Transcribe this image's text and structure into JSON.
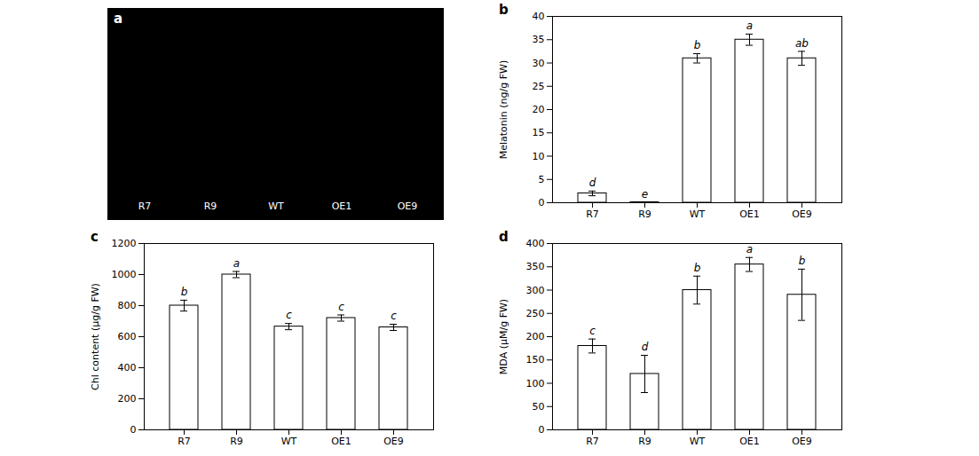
{
  "chart_data": [
    {
      "type": "photo",
      "title": "a",
      "categories": [
        "R7",
        "R9",
        "WT",
        "OE1",
        "OE9"
      ],
      "color": "black",
      "tick_labels": false
    },
    {
      "type": "bar",
      "title": "b",
      "categories": [
        "R7",
        "R9",
        "WT",
        "OE1",
        "OE9"
      ],
      "values": [
        2.0,
        0.1,
        31.0,
        35.0,
        31.0
      ],
      "errors": [
        0.5,
        0.05,
        1.0,
        1.2,
        1.5
      ],
      "annotations": [
        "d",
        "e",
        "b",
        "a",
        "ab"
      ],
      "ylabel": "Melatonin (ng/g FW)",
      "ylim": [
        0,
        40
      ],
      "yticks": [
        0,
        5,
        10,
        15,
        20,
        25,
        30,
        35,
        40
      ],
      "color": "white"
    },
    {
      "type": "bar",
      "title": "c",
      "categories": [
        "R7",
        "R9",
        "WT",
        "OE1",
        "OE9"
      ],
      "values": [
        800,
        1000,
        665,
        720,
        660
      ],
      "errors": [
        35,
        20,
        20,
        20,
        20
      ],
      "annotations": [
        "b",
        "a",
        "c",
        "c",
        "c"
      ],
      "ylabel": "Chl content (μg/g FW)",
      "ylim": [
        0,
        1200
      ],
      "yticks": [
        0,
        200,
        400,
        600,
        800,
        1000,
        1200
      ],
      "color": "white"
    },
    {
      "type": "bar",
      "title": "d",
      "categories": [
        "R7",
        "R9",
        "WT",
        "OE1",
        "OE9"
      ],
      "values": [
        180,
        120,
        300,
        355,
        290
      ],
      "errors": [
        15,
        40,
        30,
        15,
        55
      ],
      "annotations": [
        "c",
        "d",
        "b",
        "a",
        "b"
      ],
      "ylabel": "MDA (μM/g FW)",
      "ylim": [
        0,
        400
      ],
      "yticks": [
        0,
        50,
        100,
        150,
        200,
        250,
        300,
        350,
        400
      ],
      "color": "white"
    }
  ]
}
